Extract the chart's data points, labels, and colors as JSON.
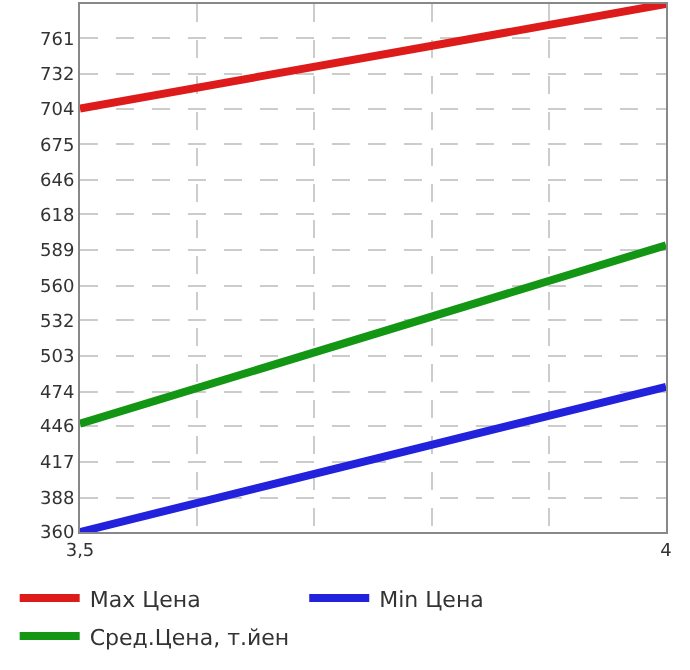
{
  "chart_data": {
    "type": "line",
    "x": [
      3.5,
      4
    ],
    "series": [
      {
        "name": "Max Цена",
        "color": "#dd1b1b",
        "values": [
          704,
          789
        ]
      },
      {
        "name": "Min Цена",
        "color": "#2222dd",
        "values": [
          360,
          478
        ]
      },
      {
        "name": "Сред.Цена, т.йен",
        "color": "#139613",
        "values": [
          448,
          593
        ]
      }
    ],
    "xlim": [
      3.5,
      4
    ],
    "xticks": [
      {
        "value": 3.5,
        "label": "3,5"
      },
      {
        "value": 3.6,
        "label": null
      },
      {
        "value": 3.7,
        "label": null
      },
      {
        "value": 3.8,
        "label": null
      },
      {
        "value": 3.9,
        "label": null
      },
      4
    ],
    "ylim": [
      360,
      789
    ],
    "yticks": [
      360,
      388,
      417,
      446,
      474,
      503,
      532,
      560,
      589,
      618,
      646,
      675,
      704,
      732,
      761
    ],
    "grid": true,
    "legend": "bottom",
    "marker": "none",
    "line_style": "solid"
  }
}
